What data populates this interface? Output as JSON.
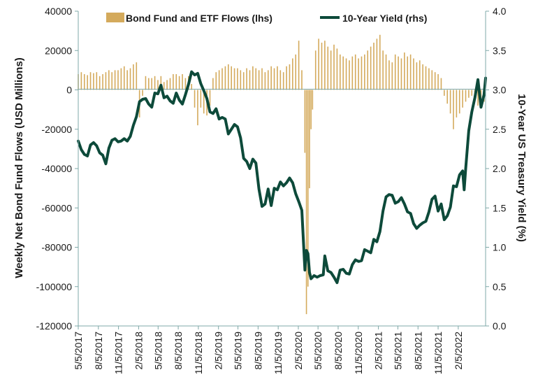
{
  "chart_data": {
    "type": "bar+line",
    "legend": {
      "placement": "top",
      "entries": [
        "Bond Fund and ETF Flows (lhs)",
        "10-Year Yield (rhs)"
      ]
    },
    "ylabel_left": "Weekly Net Bond Fund Flows (USD Millions)",
    "ylabel_right": "10-Year US Treasury Yield (%)",
    "x_tick_labels": [
      "5/5/2017",
      "8/5/2017",
      "11/5/2017",
      "2/5/2018",
      "5/5/2018",
      "8/5/2018",
      "11/5/2018",
      "2/5/2019",
      "5/5/2019",
      "8/5/2019",
      "11/5/2019",
      "2/5/2020",
      "5/5/2020",
      "8/5/2020",
      "11/5/2020",
      "2/5/2021",
      "5/5/2021",
      "8/5/2021",
      "11/5/2021",
      "2/5/2022"
    ],
    "x_range": [
      "5/5/2017",
      "6/10/2022"
    ],
    "ylim_left": [
      -120000,
      40000
    ],
    "yticks_left": [
      -120000,
      -100000,
      -80000,
      -60000,
      -40000,
      -20000,
      0,
      20000,
      40000
    ],
    "ylim_right": [
      0.0,
      4.0
    ],
    "yticks_right": [
      "0.0",
      "0.5",
      "1.0",
      "1.5",
      "2.0",
      "2.5",
      "3.0",
      "3.5",
      "4.0"
    ],
    "colors": {
      "bars": "#d4aa5c",
      "line": "#0d4a3a",
      "axis": "#7fa8a8"
    },
    "series": [
      {
        "name": "Bond Fund and ETF Flows (lhs)",
        "kind": "bar",
        "axis": "left",
        "points": [
          [
            "5/5/2017",
            8000
          ],
          [
            "5/19/2017",
            9000
          ],
          [
            "6/2/2017",
            8000
          ],
          [
            "6/16/2017",
            7500
          ],
          [
            "6/30/2017",
            9000
          ],
          [
            "7/14/2017",
            8500
          ],
          [
            "7/28/2017",
            9000
          ],
          [
            "8/11/2017",
            7000
          ],
          [
            "8/25/2017",
            8000
          ],
          [
            "9/8/2017",
            9000
          ],
          [
            "9/22/2017",
            10000
          ],
          [
            "10/6/2017",
            9000
          ],
          [
            "10/20/2017",
            10000
          ],
          [
            "11/3/2017",
            10000
          ],
          [
            "11/17/2017",
            11000
          ],
          [
            "12/1/2017",
            12000
          ],
          [
            "12/15/2017",
            10000
          ],
          [
            "12/29/2017",
            11000
          ],
          [
            "1/12/2018",
            13000
          ],
          [
            "1/26/2018",
            14000
          ],
          [
            "2/9/2018",
            -14000
          ],
          [
            "2/23/2018",
            -3000
          ],
          [
            "3/9/2018",
            7000
          ],
          [
            "3/23/2018",
            6000
          ],
          [
            "4/6/2018",
            6000
          ],
          [
            "4/20/2018",
            7000
          ],
          [
            "5/4/2018",
            5000
          ],
          [
            "5/18/2018",
            7000
          ],
          [
            "6/1/2018",
            4000
          ],
          [
            "6/15/2018",
            5000
          ],
          [
            "6/29/2018",
            6000
          ],
          [
            "7/13/2018",
            8000
          ],
          [
            "7/27/2018",
            8000
          ],
          [
            "8/10/2018",
            7000
          ],
          [
            "8/24/2018",
            8000
          ],
          [
            "9/7/2018",
            6000
          ],
          [
            "9/21/2018",
            7000
          ],
          [
            "10/5/2018",
            3000
          ],
          [
            "10/19/2018",
            -9000
          ],
          [
            "11/2/2018",
            -18000
          ],
          [
            "11/16/2018",
            -9000
          ],
          [
            "11/30/2018",
            -12000
          ],
          [
            "12/14/2018",
            -13000
          ],
          [
            "12/28/2018",
            -8000
          ],
          [
            "1/11/2019",
            6000
          ],
          [
            "1/25/2019",
            9000
          ],
          [
            "2/8/2019",
            10000
          ],
          [
            "2/22/2019",
            11000
          ],
          [
            "3/8/2019",
            12000
          ],
          [
            "3/22/2019",
            13000
          ],
          [
            "4/5/2019",
            12000
          ],
          [
            "4/19/2019",
            11000
          ],
          [
            "5/3/2019",
            11000
          ],
          [
            "5/17/2019",
            10000
          ],
          [
            "5/31/2019",
            9000
          ],
          [
            "6/14/2019",
            11000
          ],
          [
            "6/28/2019",
            10000
          ],
          [
            "7/12/2019",
            12000
          ],
          [
            "7/26/2019",
            11000
          ],
          [
            "8/9/2019",
            10000
          ],
          [
            "8/23/2019",
            11000
          ],
          [
            "9/6/2019",
            9000
          ],
          [
            "9/20/2019",
            10000
          ],
          [
            "10/4/2019",
            12000
          ],
          [
            "10/18/2019",
            11000
          ],
          [
            "11/1/2019",
            12000
          ],
          [
            "11/15/2019",
            10000
          ],
          [
            "11/29/2019",
            9000
          ],
          [
            "12/13/2019",
            12000
          ],
          [
            "12/27/2019",
            13000
          ],
          [
            "1/10/2020",
            16000
          ],
          [
            "1/24/2020",
            18000
          ],
          [
            "2/7/2020",
            25000
          ],
          [
            "2/21/2020",
            10000
          ],
          [
            "3/6/2020",
            -32000
          ],
          [
            "3/13/2020",
            -114000
          ],
          [
            "3/20/2020",
            -100000
          ],
          [
            "3/27/2020",
            -50000
          ],
          [
            "4/3/2020",
            -20000
          ],
          [
            "4/10/2020",
            -10000
          ],
          [
            "4/24/2020",
            20000
          ],
          [
            "5/8/2020",
            26000
          ],
          [
            "5/22/2020",
            24000
          ],
          [
            "6/5/2020",
            25000
          ],
          [
            "6/19/2020",
            22000
          ],
          [
            "7/3/2020",
            20000
          ],
          [
            "7/17/2020",
            23000
          ],
          [
            "7/31/2020",
            21000
          ],
          [
            "8/14/2020",
            18000
          ],
          [
            "8/28/2020",
            17000
          ],
          [
            "9/11/2020",
            16000
          ],
          [
            "9/25/2020",
            15000
          ],
          [
            "10/9/2020",
            17000
          ],
          [
            "10/23/2020",
            18000
          ],
          [
            "11/6/2020",
            16000
          ],
          [
            "11/20/2020",
            17000
          ],
          [
            "12/4/2020",
            18000
          ],
          [
            "12/18/2020",
            20000
          ],
          [
            "1/1/2021",
            22000
          ],
          [
            "1/15/2021",
            24000
          ],
          [
            "1/29/2021",
            26000
          ],
          [
            "2/12/2021",
            28000
          ],
          [
            "2/26/2021",
            20000
          ],
          [
            "3/12/2021",
            18000
          ],
          [
            "3/26/2021",
            15000
          ],
          [
            "4/9/2021",
            14000
          ],
          [
            "4/23/2021",
            18000
          ],
          [
            "5/7/2021",
            17000
          ],
          [
            "5/21/2021",
            16000
          ],
          [
            "6/4/2021",
            19000
          ],
          [
            "6/18/2021",
            17000
          ],
          [
            "7/2/2021",
            18000
          ],
          [
            "7/16/2021",
            16000
          ],
          [
            "7/30/2021",
            14000
          ],
          [
            "8/13/2021",
            15000
          ],
          [
            "8/27/2021",
            13000
          ],
          [
            "9/10/2021",
            12000
          ],
          [
            "9/24/2021",
            11000
          ],
          [
            "10/8/2021",
            10000
          ],
          [
            "10/22/2021",
            9000
          ],
          [
            "11/5/2021",
            8000
          ],
          [
            "11/19/2021",
            6000
          ],
          [
            "12/3/2021",
            -3000
          ],
          [
            "12/17/2021",
            -7000
          ],
          [
            "12/31/2021",
            -12000
          ],
          [
            "1/14/2022",
            -20000
          ],
          [
            "1/28/2022",
            -14000
          ],
          [
            "2/11/2022",
            -12000
          ],
          [
            "2/25/2022",
            -9000
          ],
          [
            "3/11/2022",
            -6000
          ],
          [
            "3/25/2022",
            -4000
          ],
          [
            "4/8/2022",
            -3000
          ],
          [
            "4/22/2022",
            -5000
          ],
          [
            "5/6/2022",
            -8000
          ],
          [
            "5/20/2022",
            -4000
          ],
          [
            "6/3/2022",
            -6000
          ]
        ]
      },
      {
        "name": "10-Year Yield (rhs)",
        "kind": "line",
        "axis": "right",
        "points": [
          [
            "5/5/2017",
            2.35
          ],
          [
            "5/19/2017",
            2.24
          ],
          [
            "6/2/2017",
            2.18
          ],
          [
            "6/16/2017",
            2.16
          ],
          [
            "6/30/2017",
            2.3
          ],
          [
            "7/14/2017",
            2.33
          ],
          [
            "7/28/2017",
            2.29
          ],
          [
            "8/11/2017",
            2.2
          ],
          [
            "8/25/2017",
            2.17
          ],
          [
            "9/8/2017",
            2.06
          ],
          [
            "9/22/2017",
            2.26
          ],
          [
            "10/6/2017",
            2.36
          ],
          [
            "10/20/2017",
            2.38
          ],
          [
            "11/3/2017",
            2.34
          ],
          [
            "11/17/2017",
            2.35
          ],
          [
            "12/1/2017",
            2.38
          ],
          [
            "12/15/2017",
            2.35
          ],
          [
            "12/29/2017",
            2.41
          ],
          [
            "1/12/2018",
            2.55
          ],
          [
            "1/26/2018",
            2.66
          ],
          [
            "2/9/2018",
            2.85
          ],
          [
            "2/23/2018",
            2.88
          ],
          [
            "3/9/2018",
            2.89
          ],
          [
            "3/23/2018",
            2.82
          ],
          [
            "4/6/2018",
            2.78
          ],
          [
            "4/20/2018",
            2.96
          ],
          [
            "5/4/2018",
            2.95
          ],
          [
            "5/18/2018",
            3.06
          ],
          [
            "6/1/2018",
            2.9
          ],
          [
            "6/15/2018",
            2.92
          ],
          [
            "6/29/2018",
            2.86
          ],
          [
            "7/13/2018",
            2.83
          ],
          [
            "7/27/2018",
            2.96
          ],
          [
            "8/10/2018",
            2.87
          ],
          [
            "8/24/2018",
            2.82
          ],
          [
            "9/7/2018",
            2.94
          ],
          [
            "9/21/2018",
            3.07
          ],
          [
            "10/5/2018",
            3.23
          ],
          [
            "10/19/2018",
            3.19
          ],
          [
            "11/2/2018",
            3.21
          ],
          [
            "11/16/2018",
            3.08
          ],
          [
            "11/30/2018",
            2.99
          ],
          [
            "12/14/2018",
            2.89
          ],
          [
            "12/28/2018",
            2.72
          ],
          [
            "1/11/2019",
            2.7
          ],
          [
            "1/25/2019",
            2.76
          ],
          [
            "2/8/2019",
            2.63
          ],
          [
            "2/22/2019",
            2.65
          ],
          [
            "3/8/2019",
            2.63
          ],
          [
            "3/22/2019",
            2.44
          ],
          [
            "4/5/2019",
            2.5
          ],
          [
            "4/19/2019",
            2.56
          ],
          [
            "5/3/2019",
            2.53
          ],
          [
            "5/17/2019",
            2.39
          ],
          [
            "5/31/2019",
            2.13
          ],
          [
            "6/14/2019",
            2.09
          ],
          [
            "6/28/2019",
            2.0
          ],
          [
            "7/12/2019",
            2.12
          ],
          [
            "7/26/2019",
            2.07
          ],
          [
            "8/9/2019",
            1.74
          ],
          [
            "8/23/2019",
            1.52
          ],
          [
            "9/6/2019",
            1.55
          ],
          [
            "9/20/2019",
            1.74
          ],
          [
            "10/4/2019",
            1.53
          ],
          [
            "10/18/2019",
            1.75
          ],
          [
            "11/1/2019",
            1.73
          ],
          [
            "11/15/2019",
            1.83
          ],
          [
            "11/29/2019",
            1.78
          ],
          [
            "12/13/2019",
            1.82
          ],
          [
            "12/27/2019",
            1.88
          ],
          [
            "1/10/2020",
            1.82
          ],
          [
            "1/24/2020",
            1.68
          ],
          [
            "2/7/2020",
            1.58
          ],
          [
            "2/21/2020",
            1.47
          ],
          [
            "3/6/2020",
            0.71
          ],
          [
            "3/13/2020",
            0.96
          ],
          [
            "3/20/2020",
            0.92
          ],
          [
            "3/27/2020",
            0.68
          ],
          [
            "4/3/2020",
            0.6
          ],
          [
            "4/17/2020",
            0.64
          ],
          [
            "5/1/2020",
            0.62
          ],
          [
            "5/15/2020",
            0.64
          ],
          [
            "5/29/2020",
            0.65
          ],
          [
            "6/5/2020",
            0.89
          ],
          [
            "6/19/2020",
            0.7
          ],
          [
            "7/3/2020",
            0.68
          ],
          [
            "7/17/2020",
            0.62
          ],
          [
            "7/31/2020",
            0.55
          ],
          [
            "8/14/2020",
            0.71
          ],
          [
            "8/28/2020",
            0.72
          ],
          [
            "9/11/2020",
            0.67
          ],
          [
            "9/25/2020",
            0.66
          ],
          [
            "10/9/2020",
            0.78
          ],
          [
            "10/23/2020",
            0.84
          ],
          [
            "11/6/2020",
            0.82
          ],
          [
            "11/20/2020",
            0.83
          ],
          [
            "12/4/2020",
            0.97
          ],
          [
            "12/18/2020",
            0.95
          ],
          [
            "1/1/2021",
            0.93
          ],
          [
            "1/15/2021",
            1.1
          ],
          [
            "1/29/2021",
            1.07
          ],
          [
            "2/12/2021",
            1.2
          ],
          [
            "2/26/2021",
            1.46
          ],
          [
            "3/12/2021",
            1.64
          ],
          [
            "3/26/2021",
            1.67
          ],
          [
            "4/9/2021",
            1.66
          ],
          [
            "4/23/2021",
            1.56
          ],
          [
            "5/7/2021",
            1.58
          ],
          [
            "5/21/2021",
            1.63
          ],
          [
            "6/4/2021",
            1.55
          ],
          [
            "6/18/2021",
            1.45
          ],
          [
            "7/2/2021",
            1.43
          ],
          [
            "7/16/2021",
            1.3
          ],
          [
            "7/30/2021",
            1.24
          ],
          [
            "8/13/2021",
            1.28
          ],
          [
            "8/27/2021",
            1.31
          ],
          [
            "9/10/2021",
            1.33
          ],
          [
            "9/24/2021",
            1.45
          ],
          [
            "10/8/2021",
            1.61
          ],
          [
            "10/22/2021",
            1.65
          ],
          [
            "11/5/2021",
            1.46
          ],
          [
            "11/19/2021",
            1.55
          ],
          [
            "12/3/2021",
            1.35
          ],
          [
            "12/17/2021",
            1.4
          ],
          [
            "12/31/2021",
            1.51
          ],
          [
            "1/14/2022",
            1.78
          ],
          [
            "1/28/2022",
            1.77
          ],
          [
            "2/11/2022",
            1.92
          ],
          [
            "2/25/2022",
            1.97
          ],
          [
            "3/4/2022",
            1.73
          ],
          [
            "3/11/2022",
            2.0
          ],
          [
            "3/25/2022",
            2.48
          ],
          [
            "4/8/2022",
            2.72
          ],
          [
            "4/22/2022",
            2.9
          ],
          [
            "5/6/2022",
            3.13
          ],
          [
            "5/20/2022",
            2.78
          ],
          [
            "6/3/2022",
            2.94
          ],
          [
            "6/10/2022",
            3.15
          ]
        ]
      }
    ]
  }
}
